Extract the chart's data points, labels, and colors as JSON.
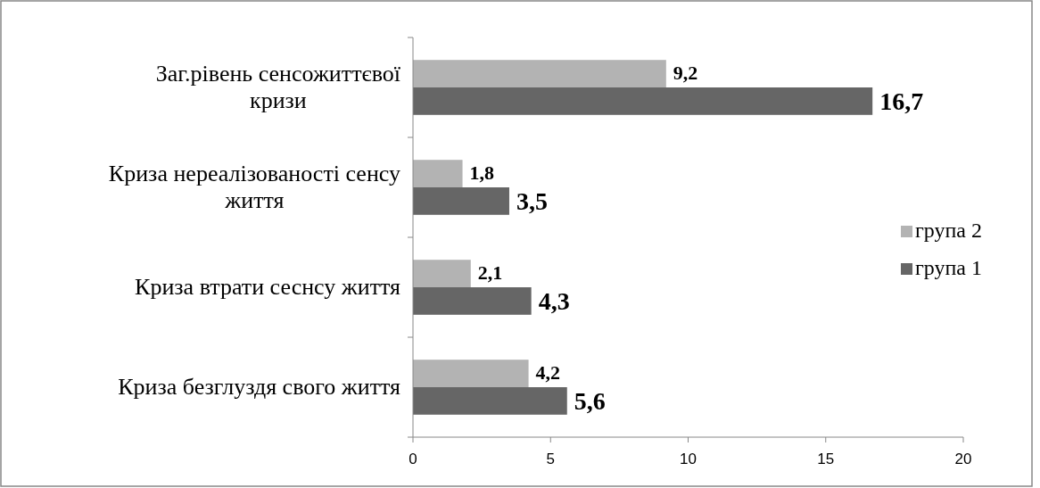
{
  "chart_data": {
    "type": "bar",
    "orientation": "horizontal",
    "categories": [
      "Заг.рівень сенсожиттєвої кризи",
      "Криза нереалізованості сенсу життя",
      "Криза втрати сеснсу життя",
      "Криза безглуздя свого життя"
    ],
    "series": [
      {
        "name": "група 2",
        "color": "#b3b3b3",
        "values": [
          9.2,
          1.8,
          2.1,
          4.2
        ],
        "value_labels": [
          "9,2",
          "1,8",
          "2,1",
          "4,2"
        ]
      },
      {
        "name": "група 1",
        "color": "#666666",
        "values": [
          16.7,
          3.5,
          4.3,
          5.6
        ],
        "value_labels": [
          "16,7",
          "3,5",
          "4,3",
          "5,6"
        ]
      }
    ],
    "xlim": [
      0,
      20
    ],
    "xticks": [
      0,
      5,
      10,
      15,
      20
    ],
    "grid": false,
    "legend": "right"
  }
}
